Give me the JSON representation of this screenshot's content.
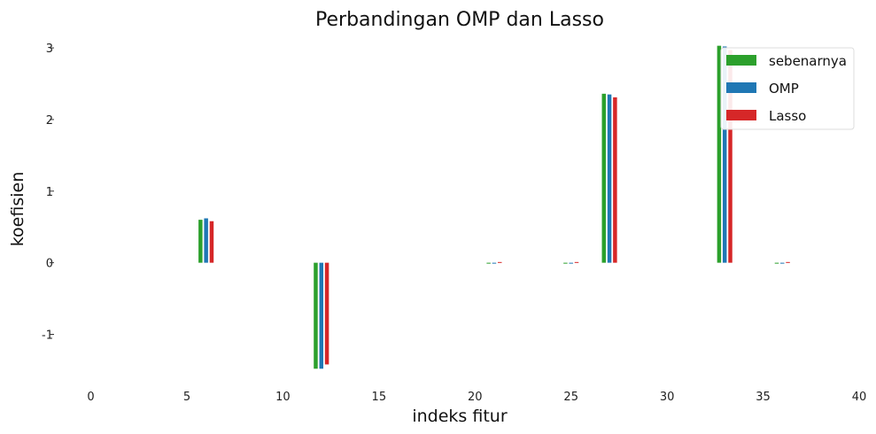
{
  "chart_data": {
    "type": "bar",
    "title": "Perbandingan OMP dan Lasso",
    "xlabel": "indeks fitur",
    "ylabel": "koefisien",
    "xlim": [
      -1.5,
      40
    ],
    "ylim": [
      -1.6,
      3.1
    ],
    "xticks": [
      0,
      5,
      10,
      15,
      20,
      25,
      30,
      35,
      40
    ],
    "yticks": [
      -1,
      0,
      1,
      2,
      3
    ],
    "grid": false,
    "legend_position": "top-right",
    "x": [
      6,
      12,
      21,
      25,
      27,
      33,
      36
    ],
    "series": [
      {
        "name": "sebenarnya",
        "color": "#2ca02c",
        "values": [
          0.6,
          -1.48,
          0.0,
          0.0,
          2.36,
          3.03,
          0.0
        ]
      },
      {
        "name": "OMP",
        "color": "#1f77b4",
        "values": [
          0.62,
          -1.48,
          0.0,
          0.0,
          2.35,
          3.02,
          0.0
        ]
      },
      {
        "name": "Lasso",
        "color": "#d62728",
        "values": [
          0.58,
          -1.42,
          0.01,
          0.01,
          2.31,
          2.97,
          0.01
        ]
      }
    ]
  }
}
